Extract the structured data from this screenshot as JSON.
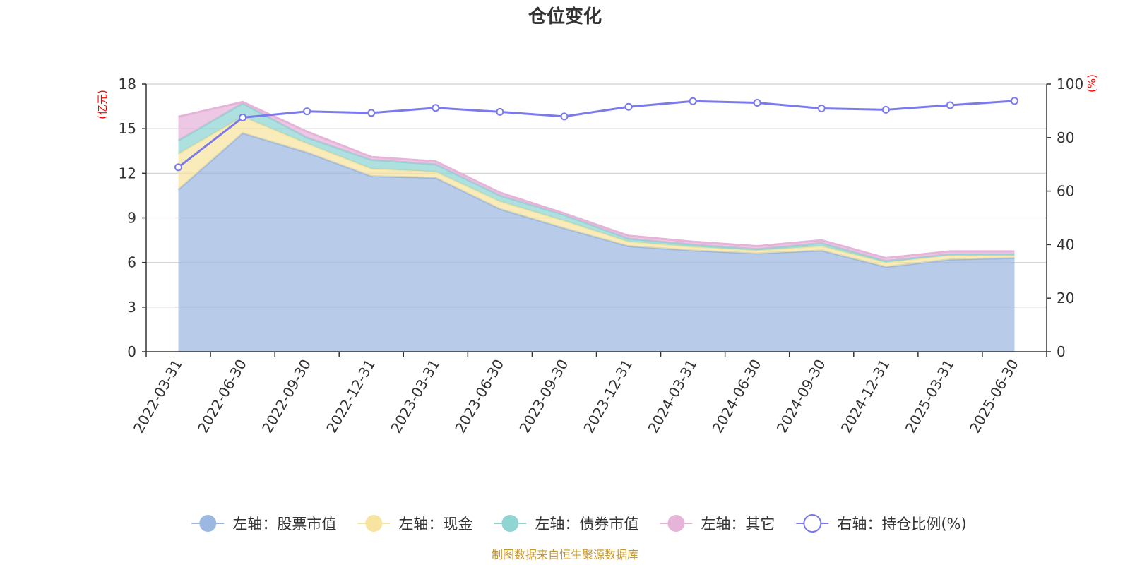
{
  "chart_data": {
    "type": "area",
    "title": "仓位变化",
    "left_axis_unit": "(亿元)",
    "right_axis_unit": "(%)",
    "categories": [
      "2022-03-31",
      "2022-06-30",
      "2022-09-30",
      "2022-12-31",
      "2023-03-31",
      "2023-06-30",
      "2023-09-30",
      "2023-12-31",
      "2024-03-31",
      "2024-06-30",
      "2024-09-30",
      "2024-12-31",
      "2025-03-31",
      "2025-06-30"
    ],
    "left_ylim": [
      0,
      18
    ],
    "left_yticks": [
      "0",
      "3",
      "6",
      "9",
      "12",
      "15",
      "18"
    ],
    "right_ylim": [
      0,
      100
    ],
    "right_yticks": [
      "0",
      "20",
      "40",
      "60",
      "80",
      "100"
    ],
    "grid": true,
    "legend_position": "bottom",
    "series": [
      {
        "name": "左轴：股票市值",
        "axis": "left",
        "kind": "area",
        "color": "#9cb8e0",
        "values": [
          10.9,
          14.7,
          13.4,
          11.8,
          11.7,
          9.6,
          8.3,
          7.1,
          6.8,
          6.6,
          6.8,
          5.7,
          6.2,
          6.3
        ]
      },
      {
        "name": "左轴：现金",
        "axis": "left",
        "kind": "area",
        "color": "#f7e4a0",
        "values": [
          2.4,
          1.1,
          0.6,
          0.5,
          0.4,
          0.5,
          0.5,
          0.3,
          0.25,
          0.2,
          0.3,
          0.3,
          0.3,
          0.2
        ]
      },
      {
        "name": "左轴：债券市值",
        "axis": "left",
        "kind": "area",
        "color": "#90d4d4",
        "values": [
          0.9,
          0.9,
          0.4,
          0.6,
          0.5,
          0.4,
          0.4,
          0.2,
          0.15,
          0.1,
          0.2,
          0.1,
          0.05,
          0.05
        ]
      },
      {
        "name": "左轴：其它",
        "axis": "left",
        "kind": "area",
        "color": "#e6b3d9",
        "values": [
          1.6,
          0.1,
          0.4,
          0.2,
          0.2,
          0.2,
          0.1,
          0.2,
          0.2,
          0.2,
          0.2,
          0.2,
          0.2,
          0.2
        ]
      },
      {
        "name": "右轴：持仓比例(%)",
        "axis": "right",
        "kind": "line",
        "color": "#7a7aee",
        "values": [
          68.9,
          87.5,
          89.8,
          89.2,
          91.1,
          89.6,
          87.9,
          91.5,
          93.6,
          93.0,
          90.9,
          90.4,
          92.1,
          93.7
        ]
      }
    ],
    "source": "制图数据来自恒生聚源数据库"
  }
}
